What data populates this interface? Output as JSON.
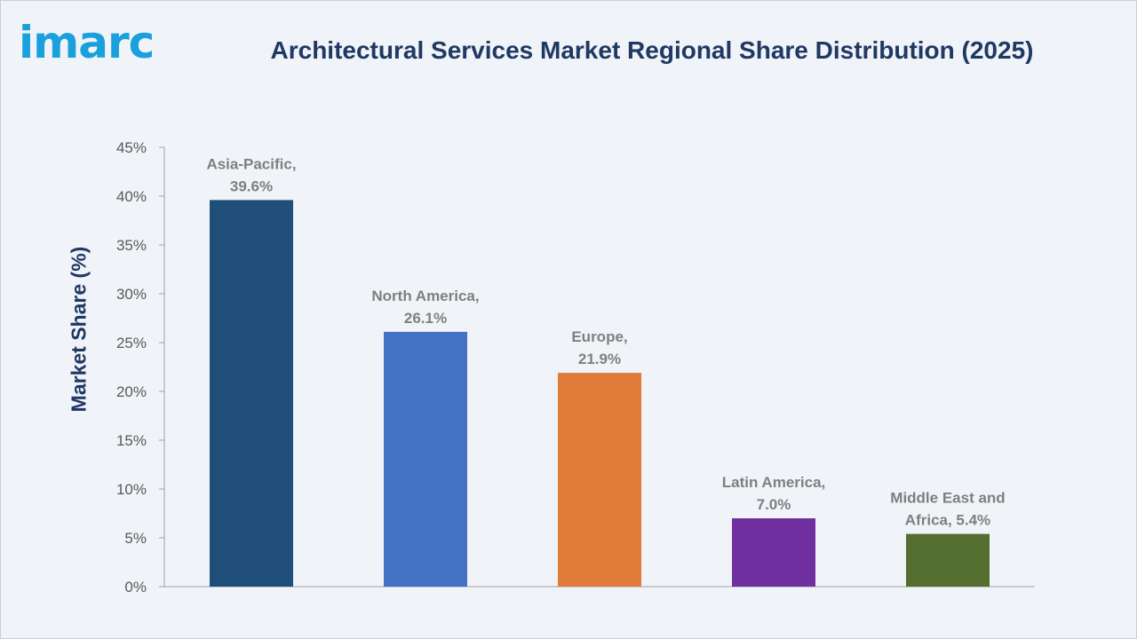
{
  "header": {
    "logo_text": "imarc",
    "title": "Architectural Services Market Regional Share Distribution (2025)"
  },
  "colors": {
    "title": "#1f3864",
    "logo": "#1aa0dc",
    "axis": "#a0a0a0",
    "tick_text": "#595959",
    "data_label": "#7f7f7f",
    "background": "#f0f3f8"
  },
  "chart_data": {
    "type": "bar",
    "title": "Architectural Services Market Regional Share Distribution (2025)",
    "xlabel": "",
    "ylabel": "Market Share (%)",
    "ylim": [
      0,
      45
    ],
    "yticks": [
      "0%",
      "5%",
      "10%",
      "15%",
      "20%",
      "25%",
      "30%",
      "35%",
      "40%",
      "45%"
    ],
    "grid": false,
    "legend": "none",
    "categories": [
      "Asia-Pacific",
      "North America",
      "Europe",
      "Latin America",
      "Middle East and Africa"
    ],
    "values": [
      39.6,
      26.1,
      21.9,
      7.0,
      5.4
    ],
    "bar_colors": [
      "#1f4e79",
      "#4472c4",
      "#e07b39",
      "#7030a0",
      "#546e2f"
    ],
    "data_labels": [
      [
        "Asia-Pacific,",
        "39.6%"
      ],
      [
        "North America,",
        "26.1%"
      ],
      [
        "Europe,",
        "21.9%"
      ],
      [
        "Latin America,",
        "7.0%"
      ],
      [
        "Middle East and",
        "Africa, 5.4%"
      ]
    ]
  }
}
